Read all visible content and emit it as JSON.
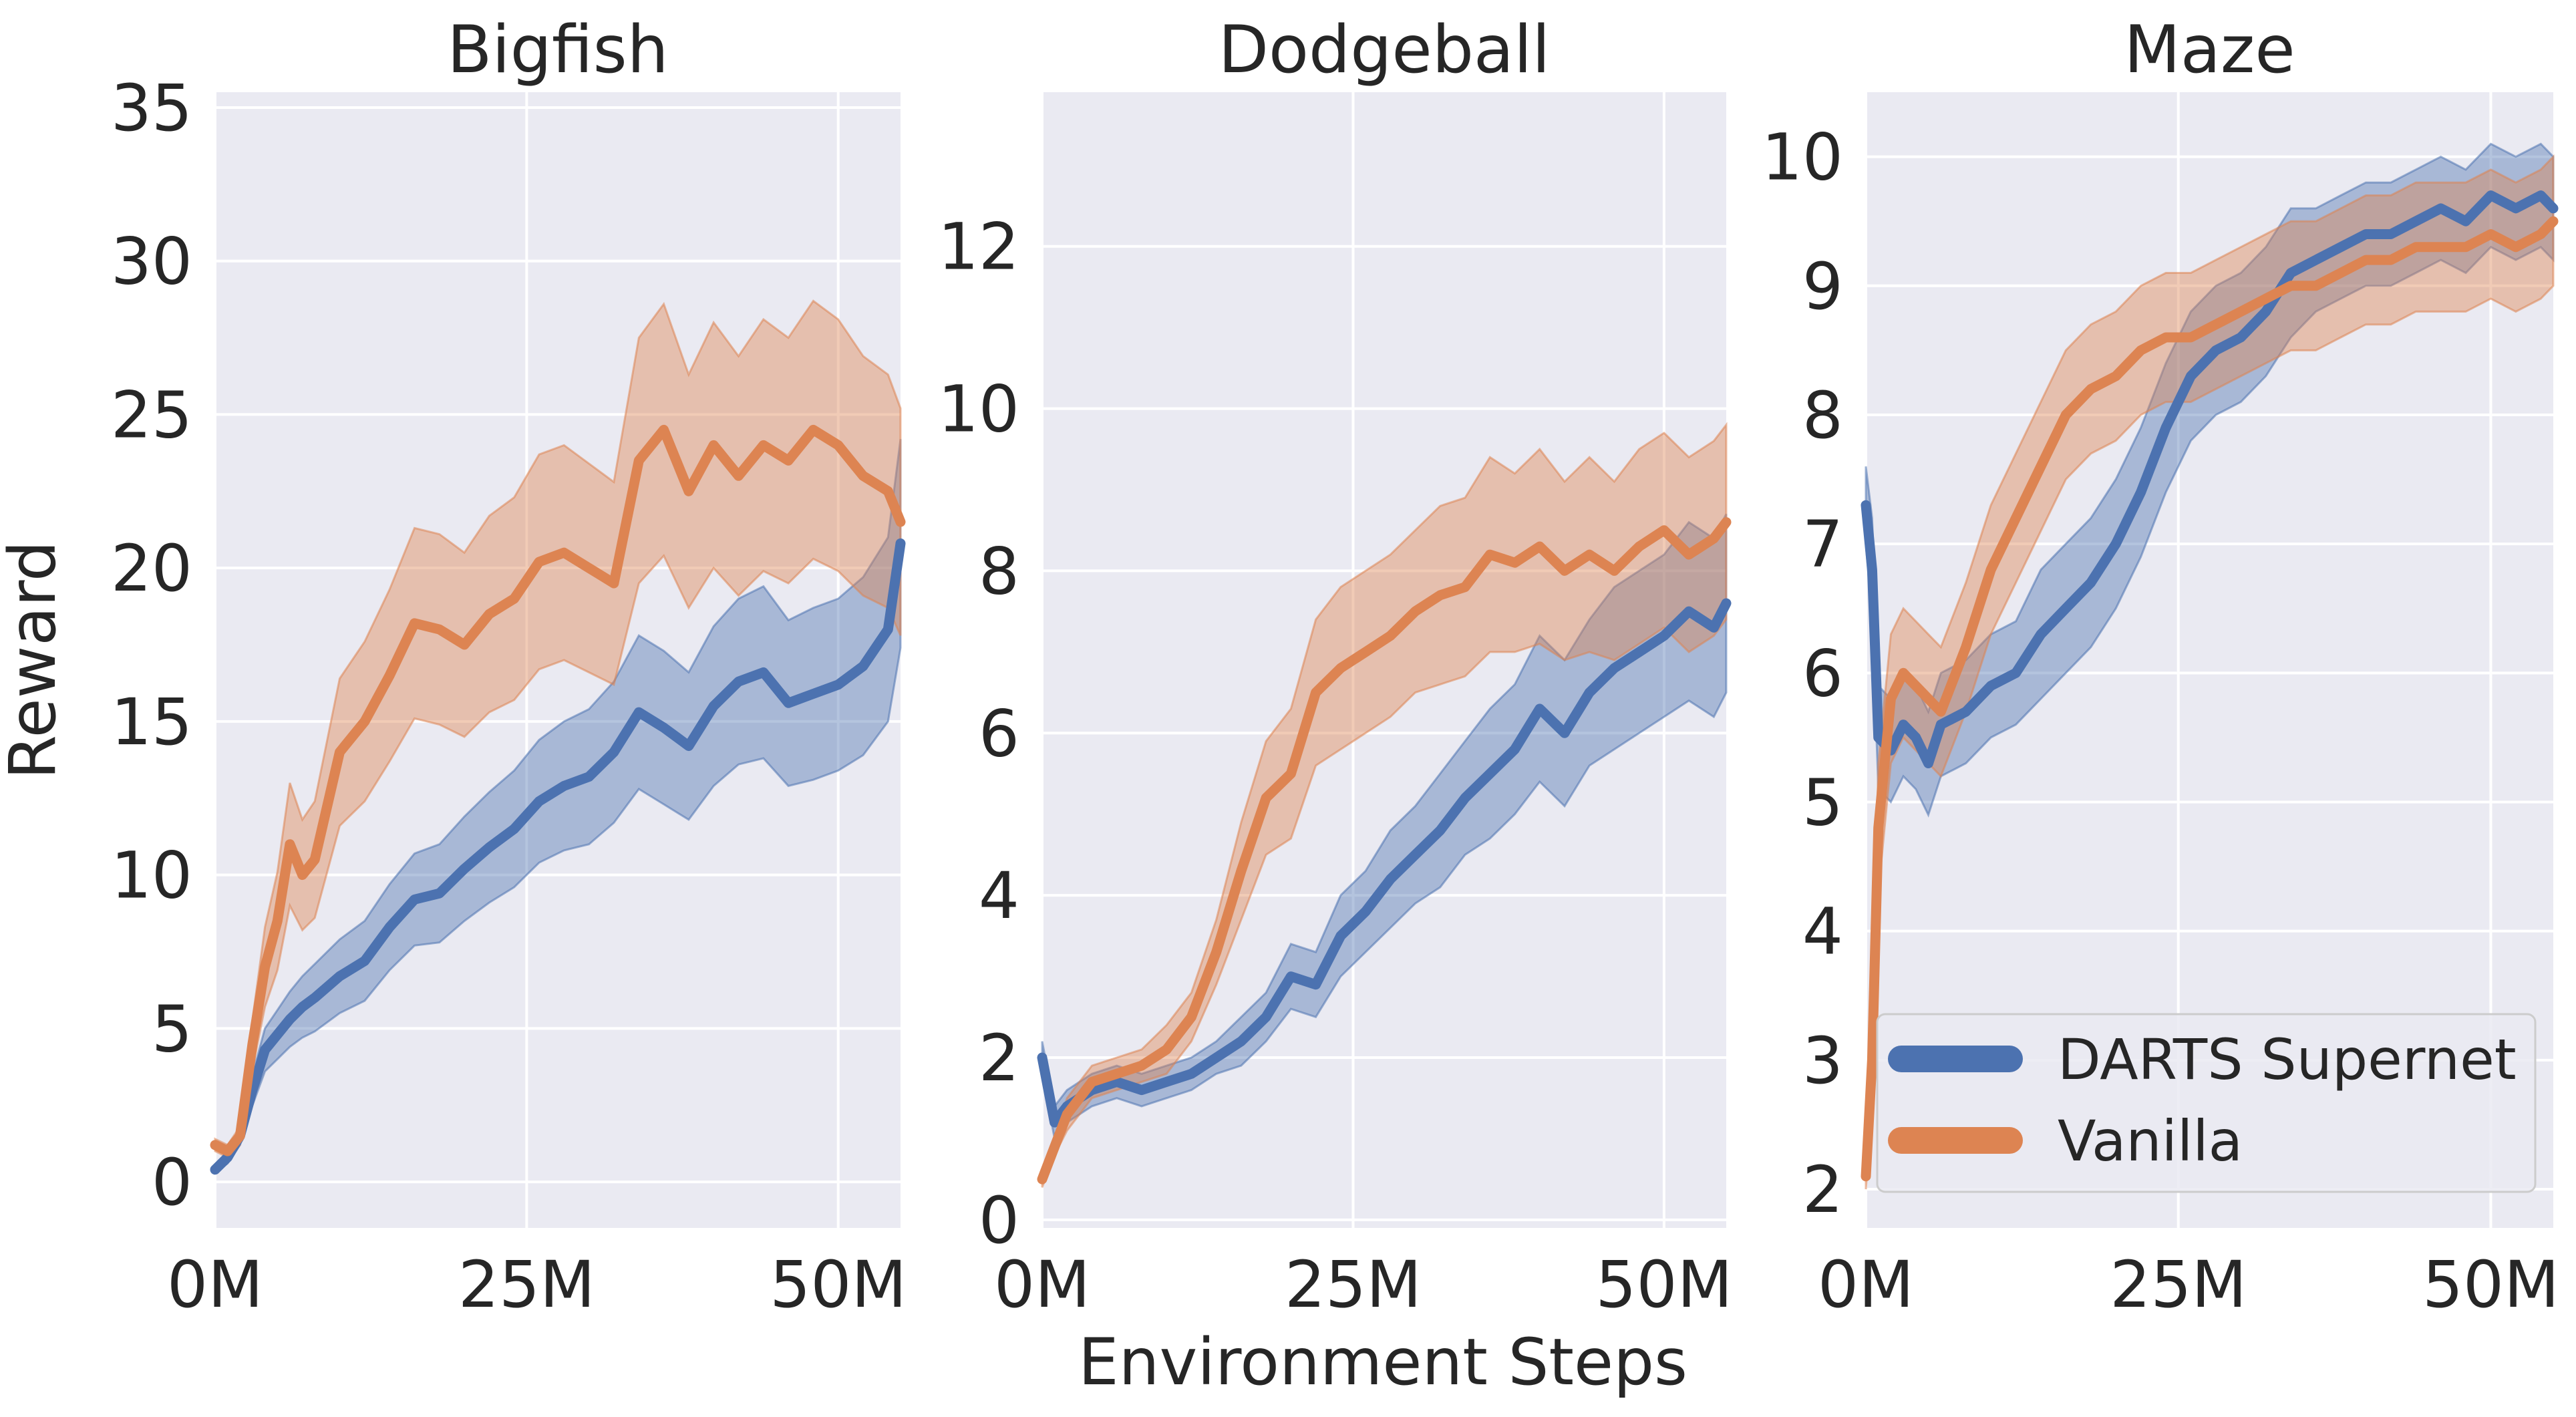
{
  "chart_data": [
    {
      "type": "line",
      "title": "Bigfish",
      "xlabel": "",
      "ylabel": "Reward",
      "xlim": [
        0,
        55
      ],
      "ylim": [
        -1.5,
        35.5
      ],
      "xticks": [
        0,
        25,
        50
      ],
      "xtick_labels": [
        "0M",
        "25M",
        "50M"
      ],
      "yticks": [
        0,
        5,
        10,
        15,
        20,
        25,
        30,
        35
      ],
      "ytick_labels": [
        "0",
        "5",
        "10",
        "15",
        "20",
        "25",
        "30",
        "35"
      ],
      "series": [
        {
          "name": "DARTS Supernet",
          "x": [
            0,
            1,
            2,
            3,
            4,
            5,
            6,
            7,
            8,
            10,
            12,
            14,
            16,
            18,
            20,
            22,
            24,
            26,
            28,
            30,
            32,
            34,
            36,
            38,
            40,
            42,
            44,
            46,
            48,
            50,
            52,
            54,
            55
          ],
          "values": [
            0.4,
            0.8,
            1.5,
            3.0,
            4.3,
            4.8,
            5.3,
            5.7,
            6.0,
            6.7,
            7.2,
            8.3,
            9.2,
            9.4,
            10.2,
            10.9,
            11.5,
            12.4,
            12.9,
            13.2,
            14.0,
            15.3,
            14.8,
            14.2,
            15.5,
            16.3,
            16.6,
            15.6,
            15.9,
            16.2,
            16.8,
            18.0,
            20.8
          ],
          "ci_low": [
            0.3,
            0.6,
            1.2,
            2.5,
            3.6,
            4.0,
            4.4,
            4.7,
            4.9,
            5.5,
            5.9,
            6.9,
            7.7,
            7.8,
            8.5,
            9.1,
            9.6,
            10.4,
            10.8,
            11.0,
            11.7,
            12.8,
            12.3,
            11.8,
            12.9,
            13.6,
            13.8,
            12.9,
            13.1,
            13.4,
            13.9,
            15.0,
            17.4
          ],
          "ci_high": [
            0.5,
            1.0,
            1.8,
            3.5,
            5.0,
            5.6,
            6.2,
            6.7,
            7.1,
            7.9,
            8.5,
            9.7,
            10.7,
            11.0,
            11.9,
            12.7,
            13.4,
            14.4,
            15.0,
            15.4,
            16.3,
            17.8,
            17.3,
            16.6,
            18.1,
            19.0,
            19.4,
            18.3,
            18.7,
            19.0,
            19.7,
            21.0,
            24.2
          ]
        },
        {
          "name": "Vanilla",
          "x": [
            0,
            1,
            2,
            3,
            4,
            5,
            6,
            7,
            8,
            10,
            12,
            14,
            16,
            18,
            20,
            22,
            24,
            26,
            28,
            30,
            32,
            34,
            36,
            38,
            40,
            42,
            44,
            46,
            48,
            50,
            52,
            54,
            55
          ],
          "values": [
            1.2,
            1.0,
            1.5,
            4.5,
            7.0,
            8.5,
            11.0,
            10.0,
            10.5,
            14.0,
            15.0,
            16.5,
            18.2,
            18.0,
            17.5,
            18.5,
            19.0,
            20.2,
            20.5,
            20.0,
            19.5,
            23.5,
            24.5,
            22.5,
            24.0,
            23.0,
            24.0,
            23.5,
            24.5,
            24.0,
            23.0,
            22.5,
            21.5
          ],
          "ci_low": [
            1.0,
            0.8,
            1.2,
            3.7,
            5.7,
            6.9,
            9.0,
            8.2,
            8.6,
            11.6,
            12.4,
            13.7,
            15.1,
            14.9,
            14.5,
            15.3,
            15.7,
            16.7,
            17.0,
            16.6,
            16.2,
            19.5,
            20.4,
            18.7,
            20.0,
            19.1,
            19.9,
            19.5,
            20.3,
            19.9,
            19.1,
            18.7,
            17.8
          ],
          "ci_high": [
            1.4,
            1.2,
            1.8,
            5.3,
            8.3,
            10.1,
            13.0,
            11.8,
            12.4,
            16.4,
            17.6,
            19.3,
            21.3,
            21.1,
            20.5,
            21.7,
            22.3,
            23.7,
            24.0,
            23.4,
            22.8,
            27.5,
            28.6,
            26.3,
            28.0,
            26.9,
            28.1,
            27.5,
            28.7,
            28.1,
            26.9,
            26.3,
            25.2
          ]
        }
      ]
    },
    {
      "type": "line",
      "title": "Dodgeball",
      "xlabel": "",
      "ylabel": "",
      "xlim": [
        0,
        55
      ],
      "ylim": [
        -0.1,
        13.9
      ],
      "xticks": [
        0,
        25,
        50
      ],
      "xtick_labels": [
        "0M",
        "25M",
        "50M"
      ],
      "yticks": [
        0,
        2,
        4,
        6,
        8,
        10,
        12
      ],
      "ytick_labels": [
        "0",
        "2",
        "4",
        "6",
        "8",
        "10",
        "12"
      ],
      "series": [
        {
          "name": "DARTS Supernet",
          "x": [
            0,
            1,
            2,
            3,
            4,
            6,
            8,
            10,
            12,
            14,
            16,
            18,
            20,
            22,
            24,
            26,
            28,
            30,
            32,
            34,
            36,
            38,
            40,
            42,
            44,
            46,
            48,
            50,
            52,
            54,
            55
          ],
          "values": [
            2.0,
            1.2,
            1.4,
            1.5,
            1.6,
            1.7,
            1.6,
            1.7,
            1.8,
            2.0,
            2.2,
            2.5,
            3.0,
            2.9,
            3.5,
            3.8,
            4.2,
            4.5,
            4.8,
            5.2,
            5.5,
            5.8,
            6.3,
            6.0,
            6.5,
            6.8,
            7.0,
            7.2,
            7.5,
            7.3,
            7.6
          ],
          "ci_low": [
            1.8,
            1.0,
            1.2,
            1.3,
            1.4,
            1.5,
            1.4,
            1.5,
            1.6,
            1.8,
            1.9,
            2.2,
            2.6,
            2.5,
            3.0,
            3.3,
            3.6,
            3.9,
            4.1,
            4.5,
            4.7,
            5.0,
            5.4,
            5.1,
            5.6,
            5.8,
            6.0,
            6.2,
            6.4,
            6.2,
            6.5
          ],
          "ci_high": [
            2.2,
            1.4,
            1.6,
            1.7,
            1.8,
            1.9,
            1.8,
            1.9,
            2.0,
            2.2,
            2.5,
            2.8,
            3.4,
            3.3,
            4.0,
            4.3,
            4.8,
            5.1,
            5.5,
            5.9,
            6.3,
            6.6,
            7.2,
            6.9,
            7.4,
            7.8,
            8.0,
            8.2,
            8.6,
            8.4,
            8.7
          ]
        },
        {
          "name": "Vanilla",
          "x": [
            0,
            1,
            2,
            3,
            4,
            6,
            8,
            10,
            12,
            14,
            16,
            18,
            20,
            22,
            24,
            26,
            28,
            30,
            32,
            34,
            36,
            38,
            40,
            42,
            44,
            46,
            48,
            50,
            52,
            54,
            55
          ],
          "values": [
            0.5,
            0.9,
            1.3,
            1.5,
            1.7,
            1.8,
            1.9,
            2.1,
            2.5,
            3.3,
            4.3,
            5.2,
            5.5,
            6.5,
            6.8,
            7.0,
            7.2,
            7.5,
            7.7,
            7.8,
            8.2,
            8.1,
            8.3,
            8.0,
            8.2,
            8.0,
            8.3,
            8.5,
            8.2,
            8.4,
            8.6
          ],
          "ci_low": [
            0.4,
            0.8,
            1.1,
            1.3,
            1.5,
            1.6,
            1.7,
            1.8,
            2.2,
            2.9,
            3.7,
            4.5,
            4.7,
            5.6,
            5.8,
            6.0,
            6.2,
            6.5,
            6.6,
            6.7,
            7.0,
            7.0,
            7.1,
            6.9,
            7.0,
            6.9,
            7.1,
            7.3,
            7.0,
            7.2,
            7.4
          ],
          "ci_high": [
            0.6,
            1.0,
            1.5,
            1.7,
            1.9,
            2.0,
            2.1,
            2.4,
            2.8,
            3.7,
            4.9,
            5.9,
            6.3,
            7.4,
            7.8,
            8.0,
            8.2,
            8.5,
            8.8,
            8.9,
            9.4,
            9.2,
            9.5,
            9.1,
            9.4,
            9.1,
            9.5,
            9.7,
            9.4,
            9.6,
            9.8
          ]
        }
      ]
    },
    {
      "type": "line",
      "title": "Maze",
      "xlabel": "",
      "ylabel": "",
      "xlim": [
        0,
        55
      ],
      "ylim": [
        1.7,
        10.5
      ],
      "xticks": [
        0,
        25,
        50
      ],
      "xtick_labels": [
        "0M",
        "25M",
        "50M"
      ],
      "yticks": [
        2,
        3,
        4,
        5,
        6,
        7,
        8,
        9,
        10
      ],
      "ytick_labels": [
        "2",
        "3",
        "4",
        "5",
        "6",
        "7",
        "8",
        "9",
        "10"
      ],
      "legend": {
        "location": "lower-right",
        "entries": [
          "DARTS Supernet",
          "Vanilla"
        ]
      },
      "series": [
        {
          "name": "DARTS Supernet",
          "x": [
            0,
            0.5,
            1,
            2,
            3,
            4,
            5,
            6,
            8,
            10,
            12,
            14,
            16,
            18,
            20,
            22,
            24,
            26,
            28,
            30,
            32,
            34,
            36,
            38,
            40,
            42,
            44,
            46,
            48,
            50,
            52,
            54,
            55
          ],
          "values": [
            7.3,
            6.8,
            5.5,
            5.4,
            5.6,
            5.5,
            5.3,
            5.6,
            5.7,
            5.9,
            6.0,
            6.3,
            6.5,
            6.7,
            7.0,
            7.4,
            7.9,
            8.3,
            8.5,
            8.6,
            8.8,
            9.1,
            9.2,
            9.3,
            9.4,
            9.4,
            9.5,
            9.6,
            9.5,
            9.7,
            9.6,
            9.7,
            9.6
          ],
          "ci_low": [
            7.0,
            6.4,
            5.1,
            5.0,
            5.2,
            5.1,
            4.9,
            5.2,
            5.3,
            5.5,
            5.6,
            5.8,
            6.0,
            6.2,
            6.5,
            6.9,
            7.4,
            7.8,
            8.0,
            8.1,
            8.3,
            8.6,
            8.8,
            8.9,
            9.0,
            9.0,
            9.1,
            9.2,
            9.1,
            9.3,
            9.2,
            9.3,
            9.2
          ],
          "ci_high": [
            7.6,
            7.2,
            5.9,
            5.8,
            6.0,
            5.9,
            5.7,
            6.0,
            6.1,
            6.3,
            6.4,
            6.8,
            7.0,
            7.2,
            7.5,
            7.9,
            8.4,
            8.8,
            9.0,
            9.1,
            9.3,
            9.6,
            9.6,
            9.7,
            9.8,
            9.8,
            9.9,
            10.0,
            9.9,
            10.1,
            10.0,
            10.1,
            10.0
          ]
        },
        {
          "name": "Vanilla",
          "x": [
            0,
            0.5,
            1,
            2,
            3,
            4,
            5,
            6,
            8,
            10,
            12,
            14,
            16,
            18,
            20,
            22,
            24,
            26,
            28,
            30,
            32,
            34,
            36,
            38,
            40,
            42,
            44,
            46,
            48,
            50,
            52,
            54,
            55
          ],
          "values": [
            2.1,
            3.0,
            4.8,
            5.8,
            6.0,
            5.9,
            5.8,
            5.7,
            6.2,
            6.8,
            7.2,
            7.6,
            8.0,
            8.2,
            8.3,
            8.5,
            8.6,
            8.6,
            8.7,
            8.8,
            8.9,
            9.0,
            9.0,
            9.1,
            9.2,
            9.2,
            9.3,
            9.3,
            9.3,
            9.4,
            9.3,
            9.4,
            9.5
          ],
          "ci_low": [
            2.0,
            2.6,
            4.3,
            5.3,
            5.5,
            5.4,
            5.3,
            5.2,
            5.7,
            6.3,
            6.7,
            7.1,
            7.5,
            7.7,
            7.8,
            8.0,
            8.1,
            8.1,
            8.2,
            8.3,
            8.4,
            8.5,
            8.5,
            8.6,
            8.7,
            8.7,
            8.8,
            8.8,
            8.8,
            8.9,
            8.8,
            8.9,
            9.0
          ],
          "ci_high": [
            2.2,
            3.4,
            5.3,
            6.3,
            6.5,
            6.4,
            6.3,
            6.2,
            6.7,
            7.3,
            7.7,
            8.1,
            8.5,
            8.7,
            8.8,
            9.0,
            9.1,
            9.1,
            9.2,
            9.3,
            9.4,
            9.5,
            9.5,
            9.6,
            9.7,
            9.7,
            9.8,
            9.8,
            9.8,
            9.9,
            9.8,
            9.9,
            10.0
          ]
        }
      ]
    }
  ],
  "figure": {
    "shared_xlabel": "Environment Steps"
  },
  "colors": {
    "darts_supernet": "#4c72b0",
    "vanilla": "#dd8452",
    "panel_background": "#eaeaf2",
    "grid": "#ffffff",
    "legend_background": "#eaeaf2",
    "legend_border": "#cccccc"
  }
}
